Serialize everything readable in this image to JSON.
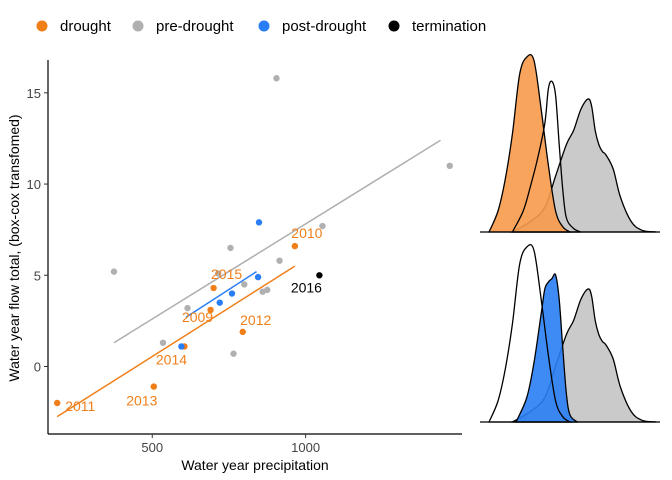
{
  "legend": {
    "position": "top",
    "items": [
      {
        "label": "drought",
        "color": "#f07f1a"
      },
      {
        "label": "pre-drought",
        "color": "#b0b0b0"
      },
      {
        "label": "post-drought",
        "color": "#2a7ef5"
      },
      {
        "label": "termination",
        "color": "#000000"
      }
    ]
  },
  "chart_data": [
    {
      "type": "scatter",
      "xlabel": "Water year precipitation",
      "ylabel": "Water year flow total, (box-cox transfomed)",
      "xlim": [
        160,
        1510
      ],
      "ylim": [
        -3.7,
        16.8
      ],
      "xticks": [
        500,
        1000
      ],
      "yticks": [
        0,
        5,
        10,
        15
      ],
      "grid": false,
      "series": [
        {
          "name": "drought",
          "color": "#f07f1a",
          "points": [
            {
              "x": 190,
              "y": -2.0,
              "label": "2011"
            },
            {
              "x": 505,
              "y": -1.1,
              "label": "2013"
            },
            {
              "x": 605,
              "y": 1.1,
              "label": "2014"
            },
            {
              "x": 690,
              "y": 3.1,
              "label": "2009"
            },
            {
              "x": 700,
              "y": 4.3,
              "label": "2015"
            },
            {
              "x": 795,
              "y": 1.9,
              "label": "2012"
            },
            {
              "x": 965,
              "y": 6.6,
              "label": "2010"
            }
          ],
          "fit": {
            "x": [
              190,
              965
            ],
            "y": [
              -2.75,
              5.5
            ]
          }
        },
        {
          "name": "pre-drought",
          "color": "#b0b0b0",
          "points": [
            {
              "x": 375,
              "y": 5.2
            },
            {
              "x": 535,
              "y": 1.3
            },
            {
              "x": 615,
              "y": 3.2
            },
            {
              "x": 715,
              "y": 5.1
            },
            {
              "x": 755,
              "y": 6.5
            },
            {
              "x": 765,
              "y": 0.7
            },
            {
              "x": 800,
              "y": 4.5
            },
            {
              "x": 860,
              "y": 4.1
            },
            {
              "x": 875,
              "y": 4.2
            },
            {
              "x": 905,
              "y": 15.8
            },
            {
              "x": 915,
              "y": 5.8
            },
            {
              "x": 1055,
              "y": 7.7
            },
            {
              "x": 1470,
              "y": 11.0
            }
          ],
          "fit": {
            "x": [
              375,
              1440
            ],
            "y": [
              1.3,
              12.4
            ]
          }
        },
        {
          "name": "post-drought",
          "color": "#2a7ef5",
          "points": [
            {
              "x": 595,
              "y": 1.1
            },
            {
              "x": 720,
              "y": 3.5
            },
            {
              "x": 760,
              "y": 4.0
            },
            {
              "x": 845,
              "y": 4.9
            },
            {
              "x": 848,
              "y": 7.9
            }
          ],
          "fit": {
            "x": [
              610,
              840
            ],
            "y": [
              2.7,
              5.2
            ]
          }
        },
        {
          "name": "termination",
          "color": "#000000",
          "points": [
            {
              "x": 1045,
              "y": 5.0,
              "label": "2016"
            }
          ]
        }
      ]
    },
    {
      "type": "area",
      "panel": "top-right",
      "description_of_curves": "density ridges",
      "series": [
        {
          "name": "pre-drought",
          "fill": "#c4c4c4",
          "x": [
            0.18,
            0.28,
            0.36,
            0.42,
            0.48,
            0.52,
            0.56,
            0.6,
            0.62,
            0.64,
            0.66,
            0.68,
            0.7,
            0.74,
            0.78,
            0.84,
            0.9,
            0.98
          ],
          "density": [
            0.0,
            0.06,
            0.14,
            0.32,
            0.5,
            0.58,
            0.7,
            0.76,
            0.72,
            0.58,
            0.5,
            0.46,
            0.44,
            0.36,
            0.2,
            0.06,
            0.01,
            0.0
          ]
        },
        {
          "name": "drought",
          "fill": "#f79a4a",
          "x": [
            0.05,
            0.1,
            0.14,
            0.18,
            0.22,
            0.26,
            0.3,
            0.34,
            0.38,
            0.42,
            0.46,
            0.5
          ],
          "density": [
            0.0,
            0.12,
            0.3,
            0.56,
            0.9,
            1.0,
            0.98,
            0.7,
            0.38,
            0.12,
            0.03,
            0.0
          ]
        },
        {
          "name": "termination",
          "fill": "none",
          "x": [
            0.18,
            0.24,
            0.28,
            0.32,
            0.36,
            0.38,
            0.4,
            0.42,
            0.44,
            0.46,
            0.48,
            0.52,
            0.56
          ],
          "density": [
            0.0,
            0.12,
            0.26,
            0.42,
            0.62,
            0.82,
            0.86,
            0.78,
            0.5,
            0.24,
            0.08,
            0.02,
            0.0
          ]
        }
      ]
    },
    {
      "type": "area",
      "panel": "bottom-right",
      "description_of_curves": "density ridges",
      "series": [
        {
          "name": "pre-drought",
          "fill": "#c4c4c4",
          "x": [
            0.18,
            0.28,
            0.36,
            0.42,
            0.48,
            0.52,
            0.56,
            0.6,
            0.62,
            0.64,
            0.66,
            0.68,
            0.7,
            0.74,
            0.78,
            0.84,
            0.9,
            0.98
          ],
          "density": [
            0.0,
            0.06,
            0.14,
            0.32,
            0.5,
            0.58,
            0.7,
            0.76,
            0.72,
            0.58,
            0.5,
            0.46,
            0.44,
            0.36,
            0.2,
            0.06,
            0.01,
            0.0
          ]
        },
        {
          "name": "post-drought",
          "fill": "#2a7ef5",
          "x": [
            0.2,
            0.26,
            0.3,
            0.34,
            0.36,
            0.38,
            0.4,
            0.42,
            0.44,
            0.46,
            0.48,
            0.5,
            0.54
          ],
          "density": [
            0.0,
            0.14,
            0.34,
            0.62,
            0.76,
            0.8,
            0.82,
            0.84,
            0.7,
            0.42,
            0.16,
            0.04,
            0.0
          ]
        },
        {
          "name": "termination",
          "fill": "none",
          "x": [
            0.05,
            0.1,
            0.14,
            0.18,
            0.22,
            0.26,
            0.3,
            0.34,
            0.38,
            0.42,
            0.46,
            0.5
          ],
          "density": [
            0.0,
            0.12,
            0.3,
            0.56,
            0.9,
            1.0,
            0.98,
            0.7,
            0.38,
            0.12,
            0.03,
            0.0
          ]
        }
      ]
    }
  ]
}
